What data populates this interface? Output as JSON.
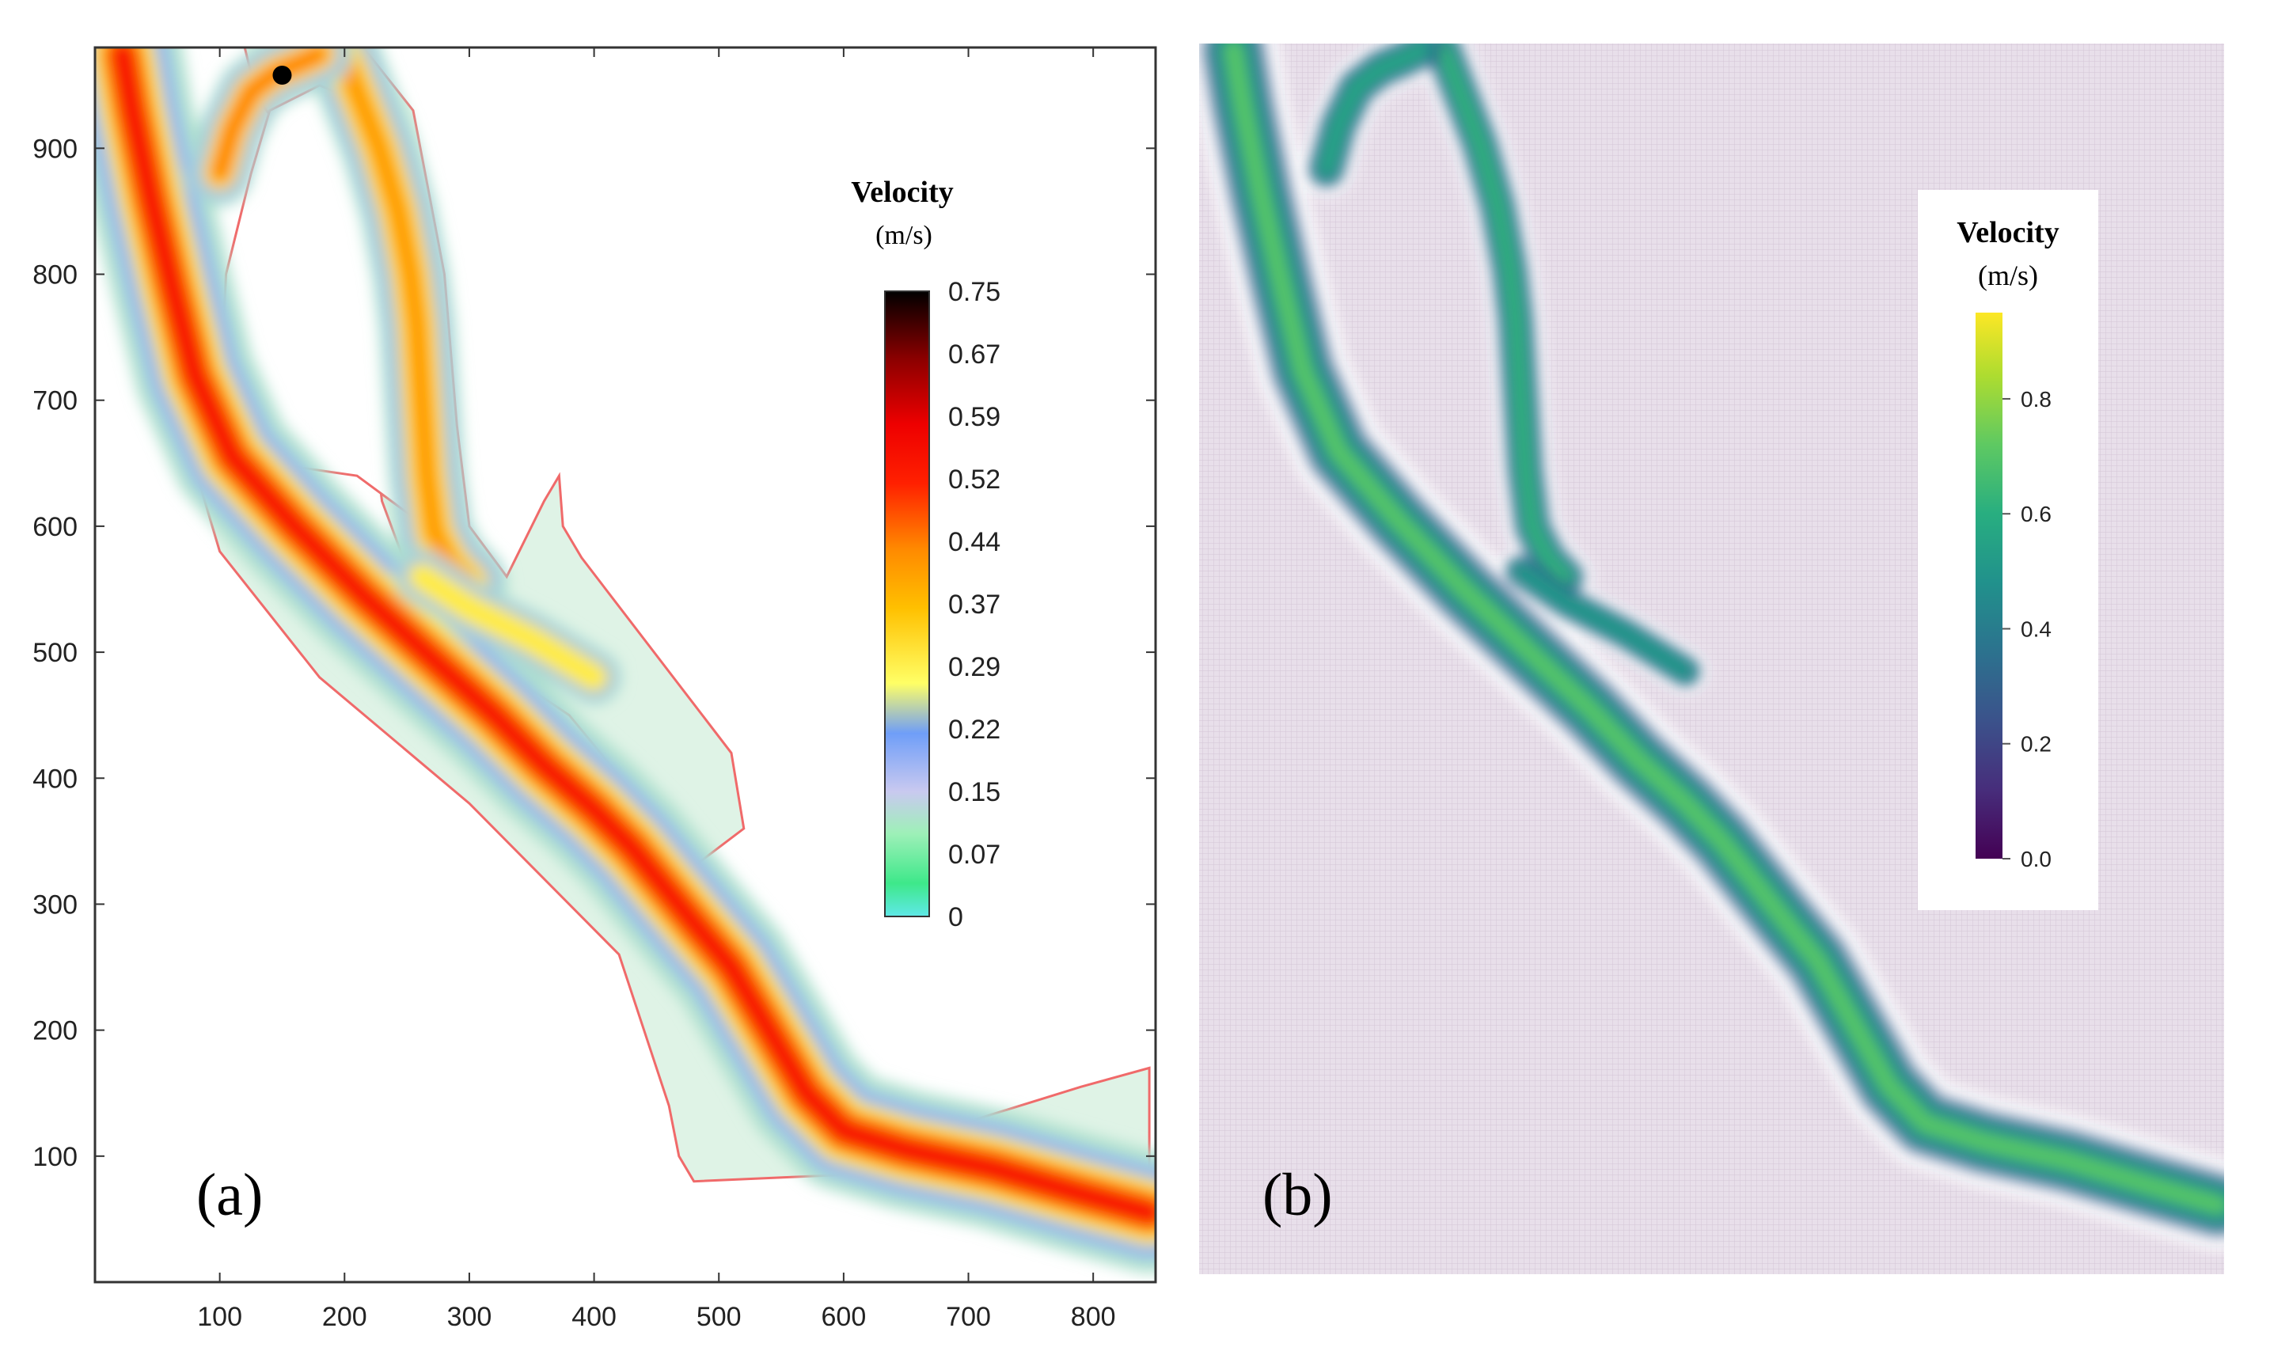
{
  "figure": {
    "panel_a_label": "(a)",
    "panel_b_label": "(b)"
  },
  "colors": {
    "background": "#ffffff",
    "panel_b_background": "#e6dbe8",
    "outline_a": "#f06a6a",
    "axis": "#333333"
  },
  "chart_data": [
    {
      "type": "heatmap",
      "panel": "a",
      "title": "",
      "xlabel": "",
      "ylabel": "",
      "xlim": [
        0,
        850
      ],
      "ylim": [
        0,
        980
      ],
      "x_ticks": [
        100,
        200,
        300,
        400,
        500,
        600,
        700,
        800
      ],
      "y_ticks": [
        100,
        200,
        300,
        400,
        500,
        600,
        700,
        800,
        900
      ],
      "grid": false,
      "colorbar": {
        "title_line1": "Velocity",
        "title_line2": "(m/s)",
        "placement": "right",
        "tick_labels": [
          "0.75",
          "0.67",
          "0.59",
          "0.52",
          "0.44",
          "0.37",
          "0.29",
          "0.22",
          "0.15",
          "0.07",
          "0"
        ],
        "stops": [
          {
            "value": 0,
            "color": "#5fe8e8"
          },
          {
            "value": 0.04,
            "color": "#3ee88a"
          },
          {
            "value": 0.1,
            "color": "#9ef0b8"
          },
          {
            "value": 0.15,
            "color": "#c9c9f0"
          },
          {
            "value": 0.22,
            "color": "#6f9ef8"
          },
          {
            "value": 0.28,
            "color": "#ffff66"
          },
          {
            "value": 0.37,
            "color": "#ffc000"
          },
          {
            "value": 0.44,
            "color": "#ff8a00"
          },
          {
            "value": 0.52,
            "color": "#ff2000"
          },
          {
            "value": 0.59,
            "color": "#ee0000"
          },
          {
            "value": 0.67,
            "color": "#8a0000"
          },
          {
            "value": 0.75,
            "color": "#000000"
          }
        ]
      },
      "domain_outline": [
        [
          0,
          980
        ],
        [
          8,
          960
        ],
        [
          60,
          720
        ],
        [
          120,
          620
        ],
        [
          250,
          520
        ],
        [
          420,
          370
        ],
        [
          520,
          200
        ],
        [
          600,
          125
        ],
        [
          660,
          115
        ],
        [
          790,
          155
        ],
        [
          845,
          170
        ],
        [
          845,
          40
        ],
        [
          800,
          85
        ],
        [
          700,
          95
        ],
        [
          595,
          85
        ],
        [
          480,
          80
        ],
        [
          468,
          100
        ],
        [
          460,
          140
        ],
        [
          420,
          260
        ],
        [
          300,
          380
        ],
        [
          180,
          480
        ],
        [
          100,
          580
        ],
        [
          40,
          780
        ],
        [
          5,
          900
        ]
      ],
      "branch_outline": [
        [
          95,
          980
        ],
        [
          215,
          980
        ],
        [
          255,
          930
        ],
        [
          280,
          800
        ],
        [
          290,
          680
        ],
        [
          300,
          600
        ],
        [
          330,
          560
        ],
        [
          360,
          620
        ],
        [
          372,
          640
        ],
        [
          375,
          600
        ],
        [
          390,
          575
        ],
        [
          510,
          420
        ],
        [
          520,
          360
        ],
        [
          480,
          330
        ],
        [
          380,
          450
        ],
        [
          320,
          490
        ],
        [
          260,
          540
        ],
        [
          230,
          620
        ],
        [
          220,
          700
        ],
        [
          200,
          780
        ],
        [
          180,
          820
        ],
        [
          160,
          900
        ],
        [
          130,
          940
        ],
        [
          120,
          980
        ]
      ],
      "island_outline": [
        [
          140,
          930
        ],
        [
          180,
          950
        ],
        [
          205,
          940
        ],
        [
          230,
          900
        ],
        [
          240,
          860
        ],
        [
          258,
          760
        ],
        [
          258,
          690
        ],
        [
          262,
          620
        ],
        [
          258,
          605
        ],
        [
          210,
          640
        ],
        [
          140,
          650
        ],
        [
          100,
          700
        ],
        [
          105,
          800
        ],
        [
          125,
          880
        ]
      ],
      "channels": [
        {
          "name": "main-channel",
          "intensity": 0.55,
          "width": 11,
          "points": [
            [
              22,
              975
            ],
            [
              30,
              930
            ],
            [
              45,
              860
            ],
            [
              62,
              790
            ],
            [
              80,
              720
            ],
            [
              110,
              655
            ],
            [
              160,
              600
            ],
            [
              215,
              545
            ],
            [
              270,
              495
            ],
            [
              320,
              450
            ],
            [
              360,
              410
            ],
            [
              400,
              375
            ],
            [
              430,
              345
            ],
            [
              455,
              315
            ],
            [
              480,
              285
            ],
            [
              510,
              250
            ],
            [
              540,
              200
            ],
            [
              570,
              150
            ],
            [
              600,
              120
            ],
            [
              650,
              105
            ],
            [
              720,
              90
            ],
            [
              790,
              70
            ],
            [
              845,
              55
            ]
          ]
        },
        {
          "name": "east-branch",
          "intensity": 0.42,
          "width": 7,
          "points": [
            [
              198,
              975
            ],
            [
              212,
              940
            ],
            [
              228,
              900
            ],
            [
              243,
              850
            ],
            [
              253,
              800
            ],
            [
              258,
              760
            ],
            [
              262,
              700
            ],
            [
              266,
              640
            ],
            [
              272,
              595
            ],
            [
              285,
              570
            ],
            [
              300,
              555
            ]
          ]
        },
        {
          "name": "west-branch",
          "intensity": 0.45,
          "width": 6,
          "points": [
            [
              100,
              880
            ],
            [
              110,
              915
            ],
            [
              125,
              945
            ],
            [
              145,
              960
            ],
            [
              165,
              968
            ],
            [
              180,
              975
            ]
          ]
        },
        {
          "name": "side-channel",
          "intensity": 0.31,
          "width": 5,
          "points": [
            [
              262,
              560
            ],
            [
              300,
              535
            ],
            [
              350,
              510
            ],
            [
              400,
              480
            ]
          ]
        }
      ],
      "peak": {
        "x": 150,
        "y": 958,
        "value": 0.75
      }
    },
    {
      "type": "heatmap",
      "panel": "b",
      "title": "",
      "xlabel": "",
      "ylabel": "",
      "xlim": [
        0,
        850
      ],
      "ylim": [
        0,
        980
      ],
      "grid": false,
      "colorbar": {
        "title_line1": "Velocity",
        "title_line2": "(m/s)",
        "placement": "right",
        "tick_labels": [
          "0.8",
          "0.6",
          "0.4",
          "0.2",
          "0.0"
        ],
        "tick_values": [
          0.8,
          0.6,
          0.4,
          0.2,
          0.0
        ],
        "range": [
          0,
          0.95
        ],
        "stops": [
          {
            "value": 0.0,
            "color": "#440154"
          },
          {
            "value": 0.12,
            "color": "#472d7b"
          },
          {
            "value": 0.24,
            "color": "#3b528b"
          },
          {
            "value": 0.36,
            "color": "#2c728e"
          },
          {
            "value": 0.48,
            "color": "#21918c"
          },
          {
            "value": 0.6,
            "color": "#28ae80"
          },
          {
            "value": 0.72,
            "color": "#5ec962"
          },
          {
            "value": 0.84,
            "color": "#addc30"
          },
          {
            "value": 0.95,
            "color": "#fde725"
          }
        ]
      },
      "channels": [
        {
          "name": "main-channel",
          "intensity": 0.62,
          "width": 10,
          "points": [
            [
              22,
              975
            ],
            [
              30,
              930
            ],
            [
              45,
              860
            ],
            [
              62,
              790
            ],
            [
              80,
              720
            ],
            [
              110,
              655
            ],
            [
              160,
              600
            ],
            [
              215,
              545
            ],
            [
              270,
              495
            ],
            [
              320,
              450
            ],
            [
              360,
              410
            ],
            [
              400,
              375
            ],
            [
              430,
              345
            ],
            [
              455,
              315
            ],
            [
              480,
              285
            ],
            [
              510,
              250
            ],
            [
              540,
              200
            ],
            [
              570,
              150
            ],
            [
              600,
              120
            ],
            [
              650,
              105
            ],
            [
              720,
              90
            ],
            [
              790,
              70
            ],
            [
              845,
              55
            ]
          ]
        },
        {
          "name": "east-branch",
          "intensity": 0.55,
          "width": 6,
          "points": [
            [
              198,
              975
            ],
            [
              212,
              940
            ],
            [
              228,
              900
            ],
            [
              243,
              850
            ],
            [
              253,
              800
            ],
            [
              258,
              760
            ],
            [
              262,
              700
            ],
            [
              266,
              640
            ],
            [
              272,
              595
            ],
            [
              285,
              570
            ],
            [
              300,
              555
            ]
          ]
        },
        {
          "name": "west-branch",
          "intensity": 0.5,
          "width": 6,
          "points": [
            [
              100,
              880
            ],
            [
              110,
              915
            ],
            [
              125,
              945
            ],
            [
              145,
              960
            ],
            [
              165,
              968
            ],
            [
              180,
              975
            ]
          ]
        },
        {
          "name": "side-channel",
          "intensity": 0.45,
          "width": 5,
          "points": [
            [
              262,
              560
            ],
            [
              300,
              535
            ],
            [
              350,
              510
            ],
            [
              400,
              480
            ]
          ]
        }
      ]
    }
  ]
}
